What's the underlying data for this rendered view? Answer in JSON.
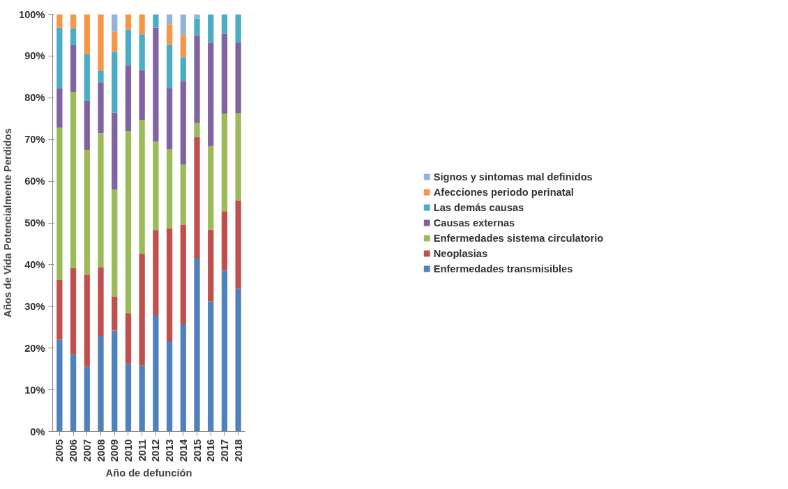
{
  "chart_data": {
    "type": "bar",
    "stacked": true,
    "xlabel": "Año de defunción",
    "ylabel": "Años de Vida Potencialmente Perdidos",
    "categories": [
      "2005",
      "2006",
      "2007",
      "2008",
      "2009",
      "2010",
      "2011",
      "2012",
      "2013",
      "2014",
      "2015",
      "2016",
      "2017",
      "2018"
    ],
    "series": [
      {
        "name": "Enfermedades transmisibles",
        "color": "#4f81bd",
        "values": [
          22,
          18.5,
          15.5,
          22.8,
          24.2,
          16.2,
          15.8,
          27.8,
          21.6,
          25.8,
          41.5,
          31.2,
          38.6,
          34.2
        ]
      },
      {
        "name": "Neoplasias",
        "color": "#c0504d",
        "values": [
          14.3,
          20.7,
          22.1,
          16.6,
          8.2,
          12.2,
          26.8,
          20.5,
          27.1,
          23.7,
          29.1,
          17.2,
          14.2,
          21.2
        ]
      },
      {
        "name": "Enfermedades sistema circulatorio",
        "color": "#9bbb59",
        "values": [
          36.5,
          42.2,
          29.9,
          32.1,
          25.6,
          43.6,
          32.1,
          21.2,
          18.9,
          14.5,
          3.3,
          20,
          23.4,
          20.9
        ]
      },
      {
        "name": "Causas externas",
        "color": "#8064a2",
        "values": [
          9.5,
          11.3,
          11.7,
          12.2,
          18.4,
          15.8,
          11.9,
          27.3,
          14.6,
          20,
          21.1,
          24.8,
          19.1,
          17
        ]
      },
      {
        "name": "Las demás causas",
        "color": "#4bacc6",
        "values": [
          14.5,
          3.9,
          11.2,
          2.7,
          14.6,
          8.5,
          8.6,
          3.2,
          10.5,
          5.7,
          4,
          6.8,
          4.7,
          6.7
        ]
      },
      {
        "name": "Afecciones periodo perinatal",
        "color": "#f79646",
        "values": [
          3.2,
          3.4,
          9.6,
          13.6,
          4.8,
          3.7,
          4.8,
          0,
          4.8,
          5.3,
          0,
          0,
          0,
          0
        ]
      },
      {
        "name": "Signos y sintomas mal definidos",
        "color": "#95b3d7",
        "values": [
          0,
          0,
          0,
          0,
          4.2,
          0,
          0,
          0,
          2.5,
          5,
          1,
          0,
          0,
          0
        ]
      }
    ],
    "ylim": [
      0,
      100
    ],
    "yticks": [
      {
        "value": 0,
        "label": "0%"
      },
      {
        "value": 10,
        "label": "10%"
      },
      {
        "value": 20,
        "label": "20%"
      },
      {
        "value": 30,
        "label": "30%"
      },
      {
        "value": 40,
        "label": "40%"
      },
      {
        "value": 50,
        "label": "50%"
      },
      {
        "value": 60,
        "label": "60%"
      },
      {
        "value": 70,
        "label": "70%"
      },
      {
        "value": 80,
        "label": "80%"
      },
      {
        "value": 90,
        "label": "90%"
      },
      {
        "value": 100,
        "label": "100%"
      }
    ],
    "grid": false,
    "legend": "right"
  }
}
